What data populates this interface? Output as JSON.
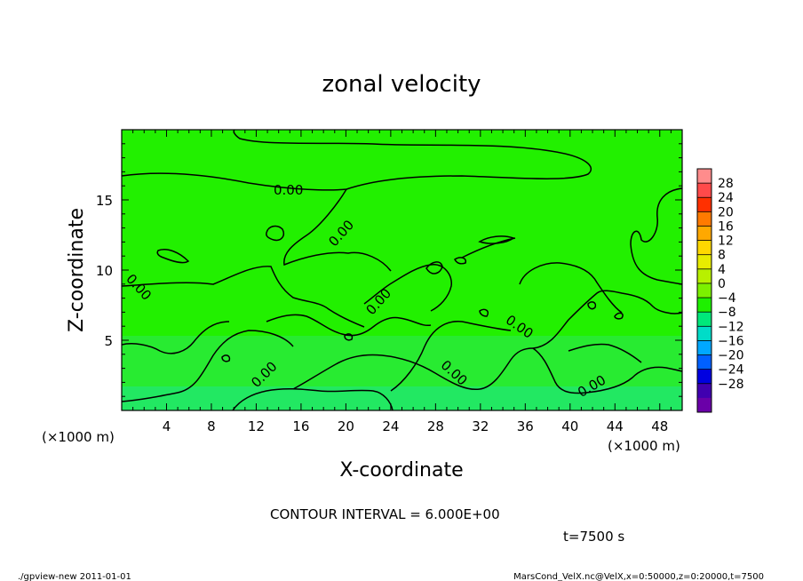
{
  "chart_data": {
    "type": "heatmap",
    "title": "zonal velocity",
    "xlabel": "X-coordinate",
    "ylabel": "Z-coordinate",
    "x_unit_label": "(×1000 m)",
    "xlim": [
      0,
      50
    ],
    "ylim": [
      0,
      20
    ],
    "x_ticks": [
      "4",
      "8",
      "12",
      "16",
      "20",
      "24",
      "28",
      "32",
      "36",
      "40",
      "44",
      "48"
    ],
    "y_ticks": [
      "5",
      "10",
      "15"
    ],
    "contour_labels": [
      "0.00",
      "0.00",
      "0.00",
      "0.00",
      "0.00",
      "0.00",
      "0.00"
    ],
    "contour_interval_text": "CONTOUR INTERVAL = 6.000E+00",
    "time_text": "t=7500 s",
    "colorbar": {
      "labels": [
        "28",
        "24",
        "20",
        "16",
        "12",
        "8",
        "4",
        "0",
        "−4",
        "−8",
        "−12",
        "−16",
        "−20",
        "−24",
        "−28"
      ],
      "colors": [
        "#ff8c8c",
        "#ff4a4a",
        "#ff3000",
        "#ff7a00",
        "#ffa800",
        "#ffd800",
        "#e8ec00",
        "#b8f000",
        "#7cf000",
        "#1ef000",
        "#00e87a",
        "#00dcc8",
        "#00a8ff",
        "#0060ff",
        "#0000e0",
        "#4000b0",
        "#6a00a8"
      ]
    }
  },
  "footer": {
    "left": "./gpview-new  2011-01-01",
    "right": "MarsCond_VelX.nc@VelX,x=0:50000,z=0:20000,t=7500"
  }
}
